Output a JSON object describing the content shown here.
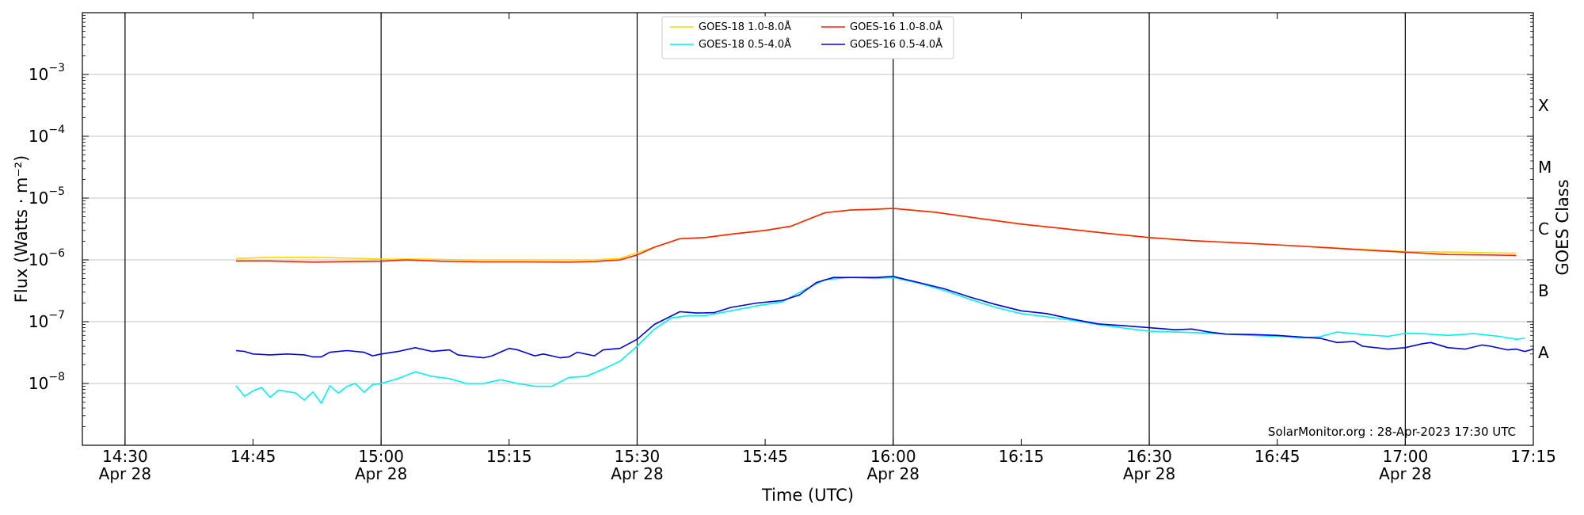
{
  "chart_data": {
    "type": "line",
    "xlabel": "Time (UTC)",
    "ylabel": "Flux (Watts · m⁻²)",
    "ylabel_right": "GOES Class",
    "yscale": "log",
    "ylim": [
      1e-09,
      0.01
    ],
    "xlim": [
      "14:25",
      "17:15"
    ],
    "x_ticks": [
      {
        "time": "14:30",
        "label": "14:30",
        "date": "Apr 28"
      },
      {
        "time": "14:45",
        "label": "14:45",
        "date": ""
      },
      {
        "time": "15:00",
        "label": "15:00",
        "date": "Apr 28"
      },
      {
        "time": "15:15",
        "label": "15:15",
        "date": ""
      },
      {
        "time": "15:30",
        "label": "15:30",
        "date": "Apr 28"
      },
      {
        "time": "15:45",
        "label": "15:45",
        "date": ""
      },
      {
        "time": "16:00",
        "label": "16:00",
        "date": "Apr 28"
      },
      {
        "time": "16:15",
        "label": "16:15",
        "date": ""
      },
      {
        "time": "16:30",
        "label": "16:30",
        "date": "Apr 28"
      },
      {
        "time": "16:45",
        "label": "16:45",
        "date": ""
      },
      {
        "time": "17:00",
        "label": "17:00",
        "date": "Apr 28"
      },
      {
        "time": "17:15",
        "label": "17:15",
        "date": ""
      }
    ],
    "vertical_lines": [
      "14:30",
      "15:00",
      "15:30",
      "16:00",
      "16:30",
      "17:00"
    ],
    "y_ticks": [
      {
        "value": 1e-08,
        "base": "10",
        "exp": "−8"
      },
      {
        "value": 1e-07,
        "base": "10",
        "exp": "−7"
      },
      {
        "value": 1e-06,
        "base": "10",
        "exp": "−6"
      },
      {
        "value": 1e-05,
        "base": "10",
        "exp": "−5"
      },
      {
        "value": 0.0001,
        "base": "10",
        "exp": "−4"
      },
      {
        "value": 0.001,
        "base": "10",
        "exp": "−3"
      }
    ],
    "goes_classes": [
      {
        "label": "A",
        "value": 3.16e-08
      },
      {
        "label": "B",
        "value": 3.16e-07
      },
      {
        "label": "C",
        "value": 3.16e-06
      },
      {
        "label": "M",
        "value": 3.16e-05
      },
      {
        "label": "X",
        "value": 0.000316
      }
    ],
    "grid": "horizontal at decades",
    "legend_position": "top-center",
    "annotation": "SolarMonitor.org : 28-Apr-2023 17:30 UTC",
    "series": [
      {
        "name": "GOES-18 1.0-8.0Å",
        "color": "#ffd700",
        "points": [
          [
            "14:43",
            1.05e-06
          ],
          [
            "14:47",
            1.1e-06
          ],
          [
            "14:52",
            1.1e-06
          ],
          [
            "14:57",
            1.06e-06
          ],
          [
            "15:00",
            1.03e-06
          ],
          [
            "15:05",
            1.03e-06
          ],
          [
            "15:10",
            1e-06
          ],
          [
            "15:15",
            1e-06
          ],
          [
            "15:20",
            1e-06
          ],
          [
            "15:25",
            1e-06
          ],
          [
            "15:28",
            1.06e-06
          ],
          [
            "15:30",
            1.3e-06
          ],
          [
            "15:32",
            1.6e-06
          ],
          [
            "15:35",
            2.2e-06
          ],
          [
            "15:38",
            2.3e-06
          ],
          [
            "15:41",
            2.6e-06
          ],
          [
            "15:45",
            3e-06
          ],
          [
            "15:48",
            3.5e-06
          ],
          [
            "15:50",
            4.5e-06
          ],
          [
            "15:52",
            5.8e-06
          ],
          [
            "15:55",
            6.4e-06
          ],
          [
            "15:58",
            6.6e-06
          ],
          [
            "16:00",
            6.8e-06
          ],
          [
            "16:05",
            5.9e-06
          ],
          [
            "16:10",
            4.7e-06
          ],
          [
            "16:15",
            3.8e-06
          ],
          [
            "16:20",
            3.2e-06
          ],
          [
            "16:25",
            2.7e-06
          ],
          [
            "16:30",
            2.3e-06
          ],
          [
            "16:35",
            2.05e-06
          ],
          [
            "16:40",
            1.9e-06
          ],
          [
            "16:45",
            1.75e-06
          ],
          [
            "16:50",
            1.6e-06
          ],
          [
            "16:55",
            1.48e-06
          ],
          [
            "17:00",
            1.36e-06
          ],
          [
            "17:05",
            1.34e-06
          ],
          [
            "17:10",
            1.3e-06
          ],
          [
            "17:13",
            1.28e-06
          ]
        ]
      },
      {
        "name": "GOES-18 0.5-4.0Å",
        "color": "#00f0f0",
        "points": [
          [
            "14:43",
            9.2e-09
          ],
          [
            "14:44",
            6.2e-09
          ],
          [
            "14:45",
            7.6e-09
          ],
          [
            "14:46",
            8.6e-09
          ],
          [
            "14:47",
            6e-09
          ],
          [
            "14:48",
            7.8e-09
          ],
          [
            "14:49",
            7.4e-09
          ],
          [
            "14:50",
            7e-09
          ],
          [
            "14:51",
            5.4e-09
          ],
          [
            "14:52",
            7.3e-09
          ],
          [
            "14:53",
            4.8e-09
          ],
          [
            "14:54",
            9.2e-09
          ],
          [
            "14:55",
            7e-09
          ],
          [
            "14:56",
            9e-09
          ],
          [
            "14:57",
            1e-08
          ],
          [
            "14:58",
            7.2e-09
          ],
          [
            "14:59",
            9.6e-09
          ],
          [
            "15:00",
            1e-08
          ],
          [
            "15:02",
            1.2e-08
          ],
          [
            "15:04",
            1.55e-08
          ],
          [
            "15:06",
            1.3e-08
          ],
          [
            "15:08",
            1.2e-08
          ],
          [
            "15:10",
            1e-08
          ],
          [
            "15:12",
            1e-08
          ],
          [
            "15:14",
            1.15e-08
          ],
          [
            "15:16",
            1e-08
          ],
          [
            "15:18",
            9e-09
          ],
          [
            "15:20",
            9e-09
          ],
          [
            "15:22",
            1.25e-08
          ],
          [
            "15:24",
            1.3e-08
          ],
          [
            "15:26",
            1.7e-08
          ],
          [
            "15:28",
            2.3e-08
          ],
          [
            "15:30",
            4e-08
          ],
          [
            "15:32",
            7.5e-08
          ],
          [
            "15:34",
            1.15e-07
          ],
          [
            "15:36",
            1.25e-07
          ],
          [
            "15:38",
            1.25e-07
          ],
          [
            "15:41",
            1.5e-07
          ],
          [
            "15:44",
            1.8e-07
          ],
          [
            "15:47",
            2.1e-07
          ],
          [
            "15:50",
            3.5e-07
          ],
          [
            "15:52",
            4.8e-07
          ],
          [
            "15:55",
            5.2e-07
          ],
          [
            "15:58",
            5e-07
          ],
          [
            "16:00",
            5.2e-07
          ],
          [
            "16:03",
            4.2e-07
          ],
          [
            "16:06",
            3.2e-07
          ],
          [
            "16:09",
            2.3e-07
          ],
          [
            "16:12",
            1.7e-07
          ],
          [
            "16:15",
            1.35e-07
          ],
          [
            "16:18",
            1.2e-07
          ],
          [
            "16:21",
            1.05e-07
          ],
          [
            "16:24",
            9e-08
          ],
          [
            "16:27",
            7.9e-08
          ],
          [
            "16:30",
            7e-08
          ],
          [
            "16:33",
            6.8e-08
          ],
          [
            "16:36",
            6.6e-08
          ],
          [
            "16:39",
            6.3e-08
          ],
          [
            "16:42",
            6e-08
          ],
          [
            "16:45",
            5.8e-08
          ],
          [
            "16:48",
            5.5e-08
          ],
          [
            "16:50",
            5.7e-08
          ],
          [
            "16:52",
            6.8e-08
          ],
          [
            "16:55",
            6.2e-08
          ],
          [
            "16:58",
            5.8e-08
          ],
          [
            "17:00",
            6.5e-08
          ],
          [
            "17:02",
            6.4e-08
          ],
          [
            "17:05",
            6e-08
          ],
          [
            "17:08",
            6.4e-08
          ],
          [
            "17:11",
            5.8e-08
          ],
          [
            "17:13",
            5.2e-08
          ],
          [
            "17:14",
            5.4e-08
          ]
        ]
      },
      {
        "name": "GOES-16 1.0-8.0Å",
        "color": "#ff2200",
        "points": [
          [
            "14:43",
            9.6e-07
          ],
          [
            "14:47",
            9.6e-07
          ],
          [
            "14:52",
            9.2e-07
          ],
          [
            "14:57",
            9.4e-07
          ],
          [
            "15:00",
            9.5e-07
          ],
          [
            "15:03",
            1e-06
          ],
          [
            "15:07",
            9.5e-07
          ],
          [
            "15:12",
            9.3e-07
          ],
          [
            "15:17",
            9.3e-07
          ],
          [
            "15:22",
            9.2e-07
          ],
          [
            "15:25",
            9.4e-07
          ],
          [
            "15:28",
            1e-06
          ],
          [
            "15:30",
            1.2e-06
          ],
          [
            "15:32",
            1.6e-06
          ],
          [
            "15:35",
            2.2e-06
          ],
          [
            "15:38",
            2.3e-06
          ],
          [
            "15:41",
            2.6e-06
          ],
          [
            "15:45",
            3e-06
          ],
          [
            "15:48",
            3.5e-06
          ],
          [
            "15:50",
            4.5e-06
          ],
          [
            "15:52",
            5.8e-06
          ],
          [
            "15:55",
            6.4e-06
          ],
          [
            "15:58",
            6.6e-06
          ],
          [
            "16:00",
            6.8e-06
          ],
          [
            "16:05",
            5.9e-06
          ],
          [
            "16:10",
            4.7e-06
          ],
          [
            "16:15",
            3.8e-06
          ],
          [
            "16:20",
            3.2e-06
          ],
          [
            "16:25",
            2.7e-06
          ],
          [
            "16:30",
            2.3e-06
          ],
          [
            "16:35",
            2.05e-06
          ],
          [
            "16:40",
            1.9e-06
          ],
          [
            "16:45",
            1.75e-06
          ],
          [
            "16:50",
            1.6e-06
          ],
          [
            "16:55",
            1.45e-06
          ],
          [
            "17:00",
            1.33e-06
          ],
          [
            "17:05",
            1.22e-06
          ],
          [
            "17:10",
            1.2e-06
          ],
          [
            "17:13",
            1.18e-06
          ]
        ]
      },
      {
        "name": "GOES-16 0.5-4.0Å",
        "color": "#0000dd",
        "points": [
          [
            "14:43",
            3.4e-08
          ],
          [
            "14:44",
            3.3e-08
          ],
          [
            "14:45",
            3e-08
          ],
          [
            "14:47",
            2.9e-08
          ],
          [
            "14:49",
            3e-08
          ],
          [
            "14:51",
            2.9e-08
          ],
          [
            "14:52",
            2.7e-08
          ],
          [
            "14:53",
            2.7e-08
          ],
          [
            "14:54",
            3.2e-08
          ],
          [
            "14:56",
            3.4e-08
          ],
          [
            "14:58",
            3.2e-08
          ],
          [
            "14:59",
            2.8e-08
          ],
          [
            "15:00",
            3e-08
          ],
          [
            "15:02",
            3.3e-08
          ],
          [
            "15:04",
            3.8e-08
          ],
          [
            "15:06",
            3.3e-08
          ],
          [
            "15:08",
            3.5e-08
          ],
          [
            "15:09",
            2.9e-08
          ],
          [
            "15:11",
            2.7e-08
          ],
          [
            "15:12",
            2.6e-08
          ],
          [
            "15:13",
            2.8e-08
          ],
          [
            "15:15",
            3.7e-08
          ],
          [
            "15:16",
            3.5e-08
          ],
          [
            "15:18",
            2.8e-08
          ],
          [
            "15:19",
            3e-08
          ],
          [
            "15:20",
            2.8e-08
          ],
          [
            "15:21",
            2.6e-08
          ],
          [
            "15:22",
            2.7e-08
          ],
          [
            "15:23",
            3.2e-08
          ],
          [
            "15:25",
            2.8e-08
          ],
          [
            "15:26",
            3.5e-08
          ],
          [
            "15:28",
            3.7e-08
          ],
          [
            "15:30",
            5.2e-08
          ],
          [
            "15:32",
            9e-08
          ],
          [
            "15:35",
            1.45e-07
          ],
          [
            "15:37",
            1.38e-07
          ],
          [
            "15:39",
            1.4e-07
          ],
          [
            "15:41",
            1.7e-07
          ],
          [
            "15:44",
            2e-07
          ],
          [
            "15:47",
            2.2e-07
          ],
          [
            "15:49",
            2.7e-07
          ],
          [
            "15:51",
            4.3e-07
          ],
          [
            "15:53",
            5.2e-07
          ],
          [
            "15:55",
            5.2e-07
          ],
          [
            "15:58",
            5.2e-07
          ],
          [
            "16:00",
            5.4e-07
          ],
          [
            "16:03",
            4.3e-07
          ],
          [
            "16:06",
            3.4e-07
          ],
          [
            "16:09",
            2.5e-07
          ],
          [
            "16:12",
            1.9e-07
          ],
          [
            "16:15",
            1.5e-07
          ],
          [
            "16:18",
            1.35e-07
          ],
          [
            "16:21",
            1.1e-07
          ],
          [
            "16:24",
            9.2e-08
          ],
          [
            "16:27",
            8.6e-08
          ],
          [
            "16:30",
            8e-08
          ],
          [
            "16:33",
            7.4e-08
          ],
          [
            "16:35",
            7.6e-08
          ],
          [
            "16:37",
            6.8e-08
          ],
          [
            "16:39",
            6.3e-08
          ],
          [
            "16:42",
            6.2e-08
          ],
          [
            "16:45",
            6e-08
          ],
          [
            "16:48",
            5.6e-08
          ],
          [
            "16:50",
            5.4e-08
          ],
          [
            "16:52",
            4.6e-08
          ],
          [
            "16:54",
            4.8e-08
          ],
          [
            "16:55",
            4e-08
          ],
          [
            "16:58",
            3.6e-08
          ],
          [
            "17:00",
            3.8e-08
          ],
          [
            "17:02",
            4.4e-08
          ],
          [
            "17:03",
            4.6e-08
          ],
          [
            "17:05",
            3.8e-08
          ],
          [
            "17:07",
            3.6e-08
          ],
          [
            "17:09",
            4.2e-08
          ],
          [
            "17:10",
            4e-08
          ],
          [
            "17:12",
            3.5e-08
          ],
          [
            "17:13",
            3.6e-08
          ],
          [
            "17:14",
            3.3e-08
          ],
          [
            "17:15",
            3.6e-08
          ]
        ]
      }
    ]
  }
}
